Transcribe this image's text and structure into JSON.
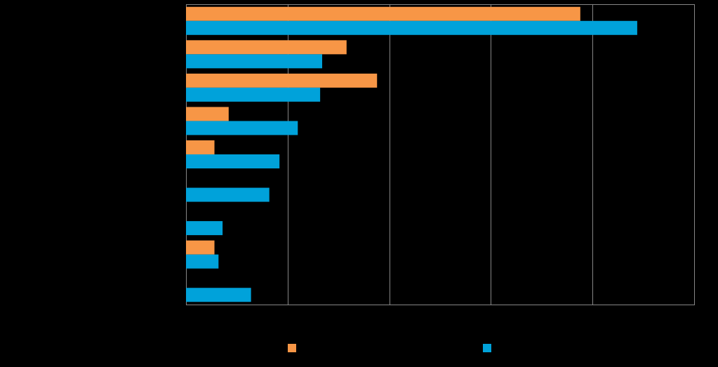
{
  "chart_data": {
    "type": "bar",
    "orientation": "horizontal",
    "categories": [
      "",
      "",
      "",
      "",
      "",
      "",
      "",
      "",
      ""
    ],
    "series": [
      {
        "name": "",
        "color": "#F79646",
        "values": [
          19.4,
          7.9,
          9.4,
          2.1,
          1.4,
          0,
          0,
          1.4,
          0
        ]
      },
      {
        "name": "",
        "color": "#00A2DA",
        "values": [
          22.2,
          6.7,
          6.6,
          5.5,
          4.6,
          4.1,
          1.8,
          1.6,
          3.2
        ]
      }
    ],
    "title": "",
    "xlabel": "",
    "ylabel": "",
    "xlim": [
      0,
      25
    ],
    "xticks": [
      0,
      5,
      10,
      15,
      20,
      25
    ],
    "grid": true,
    "legend_position": "bottom"
  }
}
